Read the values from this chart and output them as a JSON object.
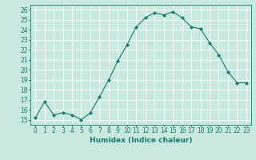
{
  "x": [
    0,
    1,
    2,
    3,
    4,
    5,
    6,
    7,
    8,
    9,
    10,
    11,
    12,
    13,
    14,
    15,
    16,
    17,
    18,
    19,
    20,
    21,
    22,
    23
  ],
  "y": [
    15.2,
    16.8,
    15.5,
    15.7,
    15.5,
    15.0,
    15.7,
    17.3,
    19.0,
    20.9,
    22.5,
    24.3,
    25.2,
    25.7,
    25.5,
    25.8,
    25.2,
    24.3,
    24.1,
    22.7,
    21.5,
    19.8,
    18.7,
    18.7
  ],
  "line_color": "#1a7a6e",
  "marker": "D",
  "marker_size": 2,
  "bg_color": "#c8e8e0",
  "grid_color": "#ffffff",
  "xlabel": "Humidex (Indice chaleur)",
  "ylim": [
    14.5,
    26.5
  ],
  "xlim": [
    -0.5,
    23.5
  ],
  "yticks": [
    15,
    16,
    17,
    18,
    19,
    20,
    21,
    22,
    23,
    24,
    25,
    26
  ],
  "xticks": [
    0,
    1,
    2,
    3,
    4,
    5,
    6,
    7,
    8,
    9,
    10,
    11,
    12,
    13,
    14,
    15,
    16,
    17,
    18,
    19,
    20,
    21,
    22,
    23
  ],
  "tick_color": "#1a7a6e",
  "label_fontsize": 6.5,
  "tick_fontsize": 5.5
}
